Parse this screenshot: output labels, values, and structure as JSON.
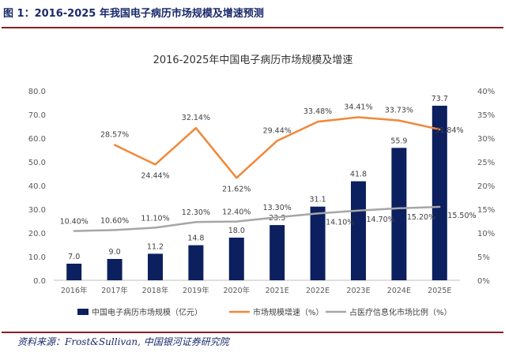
{
  "figure": {
    "title": "图 1：2016-2025 年我国电子病历市场规模及增速预测",
    "source": "资料来源：Frost&Sullivan, 中国银河证券研究院"
  },
  "colors": {
    "bar": "#0c1f5e",
    "growth_line": "#f0883a",
    "share_line": "#a6a6a6",
    "rule": "#8a1f23",
    "axis_text": "#595959"
  },
  "chart_data": {
    "type": "bar",
    "title": "2016-2025年中国电子病历市场规模及增速",
    "categories": [
      "2016年",
      "2017年",
      "2018年",
      "2019年",
      "2020年",
      "2021E",
      "2022E",
      "2023E",
      "2024E",
      "2025E"
    ],
    "y_left": {
      "min": 0,
      "max": 80,
      "ticks": [
        "0.0",
        "10.0",
        "20.0",
        "30.0",
        "40.0",
        "50.0",
        "60.0",
        "70.0",
        "80.0"
      ]
    },
    "y_right": {
      "min": 0,
      "max": 40,
      "ticks": [
        "0%",
        "5%",
        "10%",
        "15%",
        "20%",
        "25%",
        "30%",
        "35%",
        "40%"
      ]
    },
    "grid": false,
    "legend_position": "bottom",
    "series": [
      {
        "name": "中国电子病历市场规模（亿元）",
        "type": "bar",
        "axis": "left",
        "values": [
          7.0,
          9.0,
          11.2,
          14.8,
          18.0,
          23.3,
          31.1,
          41.8,
          55.9,
          73.7
        ],
        "labels": [
          "7.0",
          "9.0",
          "11.2",
          "14.8",
          "18.0",
          "23.3",
          "31.1",
          "41.8",
          "55.9",
          "73.7"
        ]
      },
      {
        "name": "市场规模增速（%）",
        "type": "line",
        "axis": "right",
        "values": [
          null,
          28.57,
          24.44,
          32.14,
          21.62,
          29.44,
          33.48,
          34.41,
          33.73,
          31.84
        ],
        "labels": [
          "",
          "28.57%",
          "24.44%",
          "32.14%",
          "21.62%",
          "29.44%",
          "33.48%",
          "34.41%",
          "33.73%",
          "31.84%"
        ]
      },
      {
        "name": "占医疗信息化市场比例（%）",
        "type": "line",
        "axis": "right",
        "values": [
          10.4,
          10.6,
          11.1,
          12.3,
          12.4,
          13.3,
          14.1,
          14.7,
          15.2,
          15.5
        ],
        "labels": [
          "10.40%",
          "10.60%",
          "11.10%",
          "12.30%",
          "12.40%",
          "13.30%",
          "14.10%",
          "14.70%",
          "15.20%",
          "15.50%"
        ]
      }
    ]
  }
}
